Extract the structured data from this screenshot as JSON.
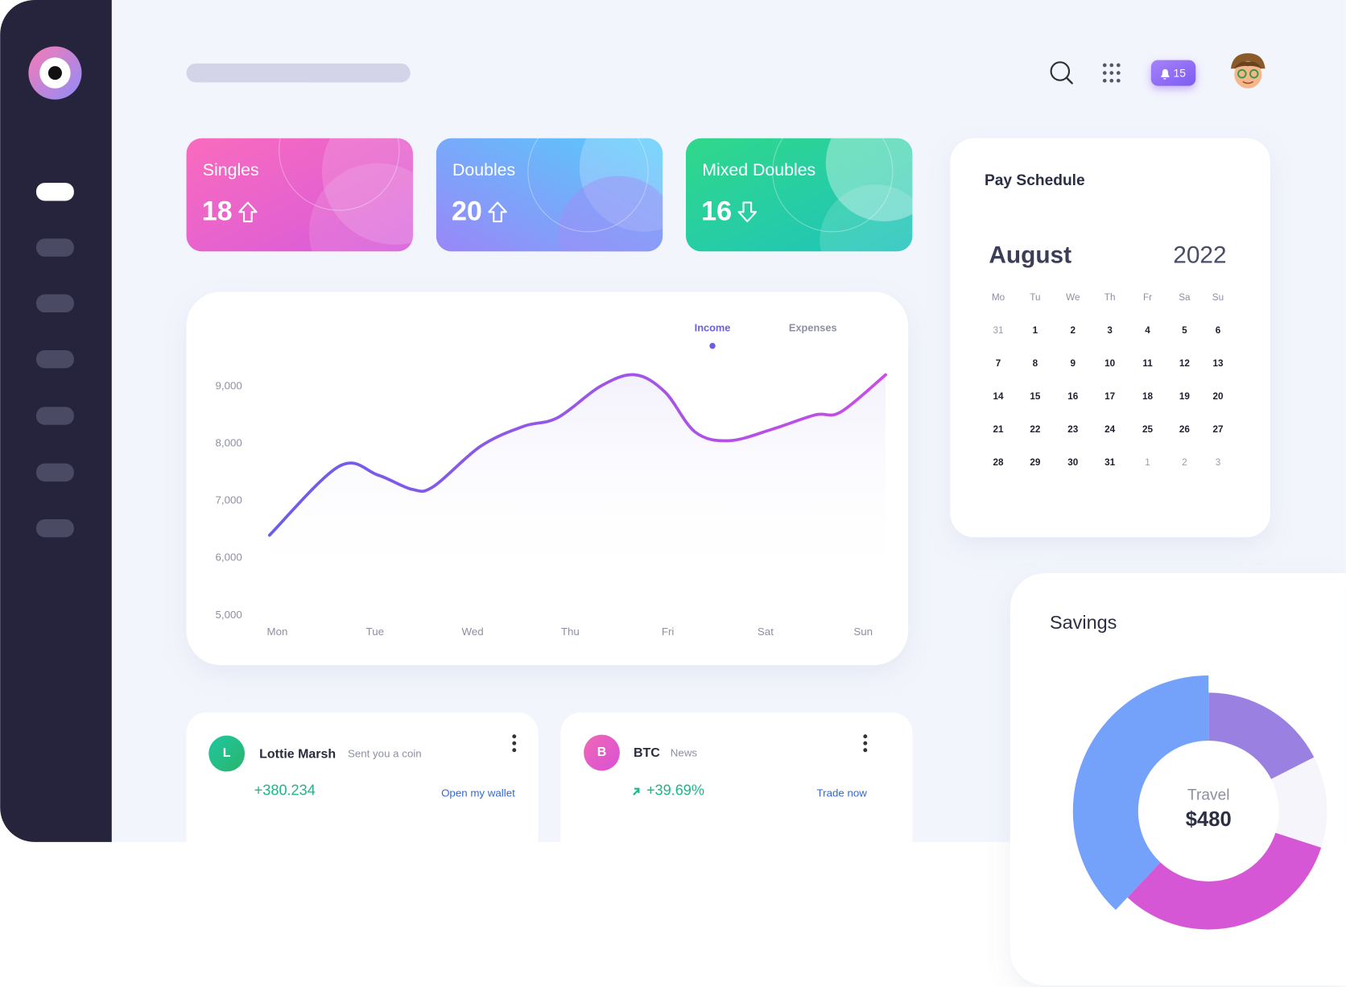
{
  "header": {
    "notification_count": 15
  },
  "stat_cards": [
    {
      "label": "Singles",
      "value": 18,
      "trend": "up"
    },
    {
      "label": "Doubles",
      "value": 20,
      "trend": "up"
    },
    {
      "label": "Mixed Doubles",
      "value": 16,
      "trend": "down"
    }
  ],
  "income_chart": {
    "type": "line",
    "tabs": [
      "Income",
      "Expenses"
    ],
    "active_tab": 0,
    "x": [
      -0.08,
      0.63,
      1.03,
      1.38,
      1.6,
      2.08,
      2.52,
      2.87,
      3.31,
      3.66,
      3.97,
      4.28,
      4.63,
      5.07,
      5.51,
      5.77,
      6.23
    ],
    "values": [
      6400,
      7600,
      7450,
      7200,
      7250,
      7950,
      8300,
      8450,
      9000,
      9200,
      8900,
      8200,
      8050,
      8250,
      8500,
      8550,
      9200
    ],
    "colors": [
      "#6a5ee8",
      "#c94de6"
    ],
    "xlim": [
      -0.1,
      6.25
    ],
    "xticks": [
      {
        "value": 0,
        "label": "Mon"
      },
      {
        "value": 1,
        "label": "Tue"
      },
      {
        "value": 2,
        "label": "Wed"
      },
      {
        "value": 3,
        "label": "Thu"
      },
      {
        "value": 4,
        "label": "Fri"
      },
      {
        "value": 5,
        "label": "Sat"
      },
      {
        "value": 6,
        "label": "Sun"
      }
    ],
    "ylim": [
      5000,
      9700
    ],
    "yticks": [
      {
        "value": 5000,
        "label": "5,000"
      },
      {
        "value": 6000,
        "label": "6,000"
      },
      {
        "value": 7000,
        "label": "7,000"
      },
      {
        "value": 8000,
        "label": "8,000"
      },
      {
        "value": 9000,
        "label": "9,000"
      }
    ]
  },
  "calendar": {
    "title": "Pay Schedule",
    "month": "August",
    "year": 2022,
    "weekdays": [
      "Mo",
      "Tu",
      "We",
      "Th",
      "Fr",
      "Sa",
      "Su"
    ],
    "prev_month_days": [
      31
    ],
    "days": [
      1,
      2,
      3,
      4,
      5,
      6,
      7,
      8,
      9,
      10,
      11,
      12,
      13,
      14,
      15,
      16,
      17,
      18,
      19,
      20,
      21,
      22,
      23,
      24,
      25,
      26,
      27,
      28,
      29,
      30,
      31
    ],
    "next_month_days": [
      1,
      2,
      3
    ]
  },
  "savings_chart": {
    "type": "donut",
    "title": "Savings",
    "center_label": "Travel",
    "center_value": "$480",
    "values": [
      17.5,
      12.5,
      32,
      38
    ],
    "colors": [
      "#9a80e0",
      "#f5f5fb",
      "#d657d6",
      "#74a2fb"
    ],
    "highlight": 3
  },
  "activity": [
    {
      "avatar": "L",
      "name": "Lottie Marsh",
      "note": "Sent you a coin",
      "amount": "+380.234",
      "action": "Open my wallet"
    },
    {
      "avatar": "B",
      "name": "BTC",
      "note": "News",
      "amount": "+39.69%",
      "action": "Trade now"
    }
  ]
}
